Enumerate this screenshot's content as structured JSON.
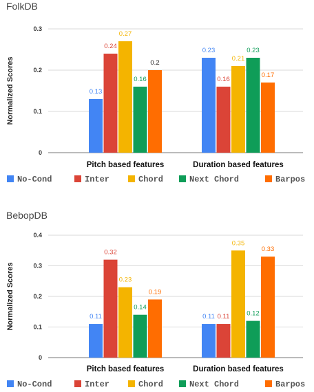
{
  "chart_data": [
    {
      "type": "bar",
      "title": "FolkDB",
      "ylabel": "Normalized Scores",
      "ylim": [
        0,
        0.3
      ],
      "yticks": [
        "0",
        "0.1",
        "0.2",
        "0.3"
      ],
      "categories": [
        "Pitch based features",
        "Duration based features"
      ],
      "series": [
        {
          "name": "No-Cond",
          "color": "#4285f4",
          "values": [
            0.13,
            0.23
          ],
          "labels": [
            "0.13",
            "0.23"
          ]
        },
        {
          "name": "Inter",
          "color": "#db4437",
          "values": [
            0.24,
            0.16
          ],
          "labels": [
            "0.24",
            "0.16"
          ]
        },
        {
          "name": "Chord",
          "color": "#f4b400",
          "values": [
            0.27,
            0.21
          ],
          "labels": [
            "0.27",
            "0.21"
          ]
        },
        {
          "name": "Next Chord",
          "color": "#0f9d58",
          "values": [
            0.16,
            0.23
          ],
          "labels": [
            "0.16",
            "0.23"
          ]
        },
        {
          "name": "Barpos",
          "color": "#ff6d01",
          "values": [
            0.2,
            0.17
          ],
          "labels": [
            "0.2",
            "0.17"
          ]
        }
      ],
      "legend": "bottom",
      "grid": true
    },
    {
      "type": "bar",
      "title": "BebopDB",
      "ylabel": "Normalized Scores",
      "ylim": [
        0,
        0.4
      ],
      "yticks": [
        "0",
        "0.1",
        "0.2",
        "0.3",
        "0.4"
      ],
      "categories": [
        "Pitch based features",
        "Duration based features"
      ],
      "series": [
        {
          "name": "No-Cond",
          "color": "#4285f4",
          "values": [
            0.11,
            0.11
          ],
          "labels": [
            "0.11",
            "0.11"
          ]
        },
        {
          "name": "Inter",
          "color": "#db4437",
          "values": [
            0.32,
            0.11
          ],
          "labels": [
            "0.32",
            "0.11"
          ]
        },
        {
          "name": "Chord",
          "color": "#f4b400",
          "values": [
            0.23,
            0.35
          ],
          "labels": [
            "0.23",
            "0.35"
          ]
        },
        {
          "name": "Next Chord",
          "color": "#0f9d58",
          "values": [
            0.14,
            0.12
          ],
          "labels": [
            "0.14",
            "0.12"
          ]
        },
        {
          "name": "Barpos",
          "color": "#ff6d01",
          "values": [
            0.19,
            0.33
          ],
          "labels": [
            "0.19",
            "0.33"
          ]
        }
      ],
      "legend": "bottom",
      "grid": true
    }
  ]
}
